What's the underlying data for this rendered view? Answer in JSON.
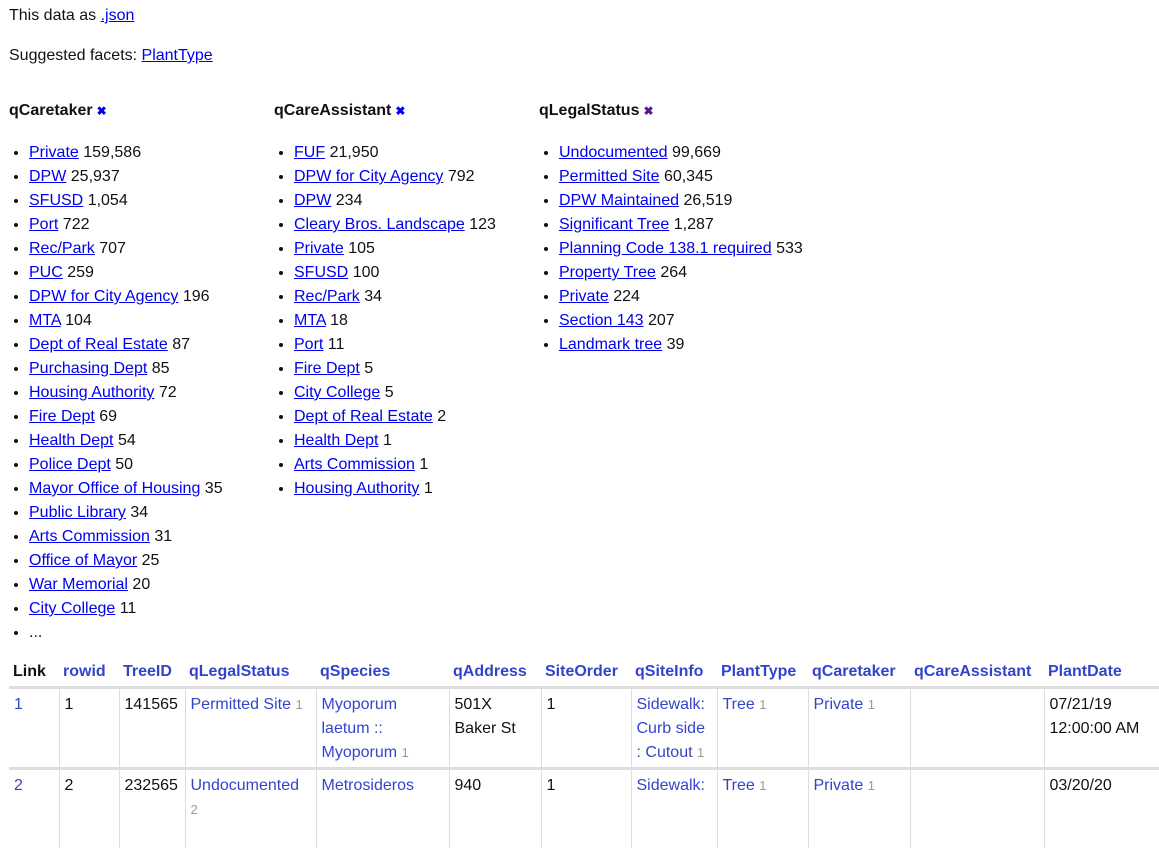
{
  "top": {
    "json_prefix": "This data as ",
    "json_link": ".json",
    "facets_prefix": "Suggested facets: ",
    "suggested": "PlantType"
  },
  "facets": [
    {
      "title": "qCaretaker",
      "remove_icon": "close-icon",
      "items": [
        [
          "Private",
          "159,586"
        ],
        [
          "DPW",
          "25,937"
        ],
        [
          "SFUSD",
          "1,054"
        ],
        [
          "Port",
          "722"
        ],
        [
          "Rec/Park",
          "707"
        ],
        [
          "PUC",
          "259"
        ],
        [
          "DPW for City Agency",
          "196"
        ],
        [
          "MTA",
          "104"
        ],
        [
          "Dept of Real Estate",
          "87"
        ],
        [
          "Purchasing Dept",
          "85"
        ],
        [
          "Housing Authority",
          "72"
        ],
        [
          "Fire Dept",
          "69"
        ],
        [
          "Health Dept",
          "54"
        ],
        [
          "Police Dept",
          "50"
        ],
        [
          "Mayor Office of Housing",
          "35"
        ],
        [
          "Public Library",
          "34"
        ],
        [
          "Arts Commission",
          "31"
        ],
        [
          "Office of Mayor",
          "25"
        ],
        [
          "War Memorial",
          "20"
        ],
        [
          "City College",
          "11"
        ]
      ],
      "more": "..."
    },
    {
      "title": "qCareAssistant",
      "remove_icon": "close-icon",
      "items": [
        [
          "FUF",
          "21,950"
        ],
        [
          "DPW for City Agency",
          "792"
        ],
        [
          "DPW",
          "234"
        ],
        [
          "Cleary Bros. Landscape",
          "123"
        ],
        [
          "Private",
          "105"
        ],
        [
          "SFUSD",
          "100"
        ],
        [
          "Rec/Park",
          "34"
        ],
        [
          "MTA",
          "18"
        ],
        [
          "Port",
          "11"
        ],
        [
          "Fire Dept",
          "5"
        ],
        [
          "City College",
          "5"
        ],
        [
          "Dept of Real Estate",
          "2"
        ],
        [
          "Health Dept",
          "1"
        ],
        [
          "Arts Commission",
          "1"
        ],
        [
          "Housing Authority",
          "1"
        ]
      ]
    },
    {
      "title": "qLegalStatus",
      "remove_icon": "close-icon",
      "items": [
        [
          "Undocumented",
          "99,669"
        ],
        [
          "Permitted Site",
          "60,345"
        ],
        [
          "DPW Maintained",
          "26,519"
        ],
        [
          "Significant Tree",
          "1,287"
        ],
        [
          "Planning Code 138.1 required",
          "533"
        ],
        [
          "Property Tree",
          "264"
        ],
        [
          "Private",
          "224"
        ],
        [
          "Section 143",
          "207"
        ],
        [
          "Landmark tree",
          "39"
        ]
      ]
    }
  ],
  "table": {
    "columns": [
      "Link",
      "rowid",
      "TreeID",
      "qLegalStatus",
      "qSpecies",
      "qAddress",
      "SiteOrder",
      "qSiteInfo",
      "PlantType",
      "qCaretaker",
      "qCareAssistant",
      "PlantDate"
    ],
    "rows": [
      {
        "link": "1",
        "rowid": "1",
        "TreeID": "141565",
        "qLegalStatus": "Permitted Site",
        "qLegalStatus_n": "1",
        "qSpecies": "Myoporum laetum :: Myoporum",
        "qSpecies_n": "1",
        "qAddress": "501X Baker St",
        "SiteOrder": "1",
        "qSiteInfo": "Sidewalk: Curb side : Cutout",
        "qSiteInfo_n": "1",
        "PlantType": "Tree",
        "PlantType_n": "1",
        "qCaretaker": "Private",
        "qCaretaker_n": "1",
        "qCareAssistant": "",
        "PlantDate": "07/21/19 12:00:00 AM"
      },
      {
        "link": "2",
        "rowid": "2",
        "TreeID": "232565",
        "qLegalStatus": "Undocumented",
        "qLegalStatus_n": "2",
        "qSpecies": "Metrosideros",
        "qSpecies_n": "",
        "qAddress": "940",
        "SiteOrder": "1",
        "qSiteInfo": "Sidewalk:",
        "qSiteInfo_n": "",
        "PlantType": "Tree",
        "PlantType_n": "1",
        "qCaretaker": "Private",
        "qCaretaker_n": "1",
        "qCareAssistant": "",
        "PlantDate": "03/20/20"
      }
    ]
  }
}
